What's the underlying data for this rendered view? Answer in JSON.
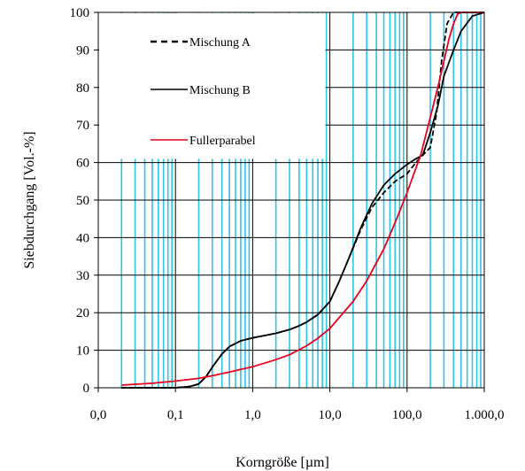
{
  "chart_data": {
    "type": "line",
    "xlabel": "Korngröße [µm]",
    "ylabel": "Siebdurchgang [Vol.-%]",
    "x_scale": "log",
    "xlim": [
      0.01,
      1000
    ],
    "ylim": [
      0,
      100
    ],
    "x_ticks": [
      0.01,
      0.1,
      1,
      10,
      100,
      1000
    ],
    "x_tick_labels": [
      "0,0",
      "0,1",
      "1,0",
      "10,0",
      "100,0",
      "1.000,0"
    ],
    "y_ticks": [
      0,
      10,
      20,
      30,
      40,
      50,
      60,
      70,
      80,
      90,
      100
    ],
    "y_tick_labels": [
      "0",
      "10",
      "20",
      "30",
      "40",
      "50",
      "60",
      "70",
      "80",
      "90",
      "100"
    ],
    "grid": true,
    "legend": "top-left",
    "series": [
      {
        "name": "Mischung A",
        "color": "#000000",
        "style": "dashed",
        "x": [
          0.02,
          0.1,
          0.15,
          0.2,
          0.25,
          0.3,
          0.4,
          0.5,
          0.7,
          1,
          1.5,
          2,
          3,
          4,
          5,
          7,
          10,
          13,
          18,
          25,
          35,
          50,
          70,
          100,
          130,
          160,
          200,
          240,
          280,
          330,
          400,
          500,
          700,
          1000
        ],
        "y": [
          0,
          0,
          0.3,
          1,
          3,
          5.5,
          9,
          11,
          12.5,
          13.3,
          14,
          14.5,
          15.5,
          16.5,
          17.5,
          19.5,
          23,
          28,
          35,
          42,
          48,
          52,
          55,
          57,
          60,
          62,
          64,
          73,
          87,
          97,
          100,
          100,
          100,
          100
        ]
      },
      {
        "name": "Mischung B",
        "color": "#000000",
        "style": "solid",
        "x": [
          0.02,
          0.1,
          0.15,
          0.2,
          0.25,
          0.3,
          0.4,
          0.5,
          0.7,
          1,
          1.5,
          2,
          3,
          4,
          5,
          7,
          10,
          13,
          18,
          25,
          35,
          50,
          70,
          100,
          130,
          160,
          200,
          250,
          300,
          400,
          500,
          700,
          1000
        ],
        "y": [
          0,
          0,
          0.3,
          1,
          3,
          5.5,
          9,
          11,
          12.5,
          13.3,
          14,
          14.5,
          15.5,
          16.5,
          17.5,
          19.5,
          23,
          28,
          35,
          42.5,
          49,
          54,
          57,
          59.5,
          61,
          62,
          68,
          75,
          83,
          90,
          95,
          99,
          100
        ]
      },
      {
        "name": "Fullerparabel",
        "color": "#e8001c",
        "style": "solid",
        "x": [
          0.02,
          0.05,
          0.1,
          0.2,
          0.3,
          0.5,
          0.7,
          1,
          2,
          3,
          5,
          7,
          10,
          20,
          30,
          50,
          70,
          100,
          150,
          200,
          250,
          300,
          350,
          400,
          450,
          500,
          700,
          1000
        ],
        "y": [
          0.7,
          1.2,
          1.8,
          2.5,
          3.2,
          4.2,
          4.9,
          5.6,
          7.5,
          8.8,
          11.2,
          13.2,
          15.8,
          23,
          28.5,
          37,
          44,
          52,
          62,
          72,
          80,
          87,
          93,
          97,
          99.5,
          100,
          100,
          100
        ]
      }
    ]
  }
}
